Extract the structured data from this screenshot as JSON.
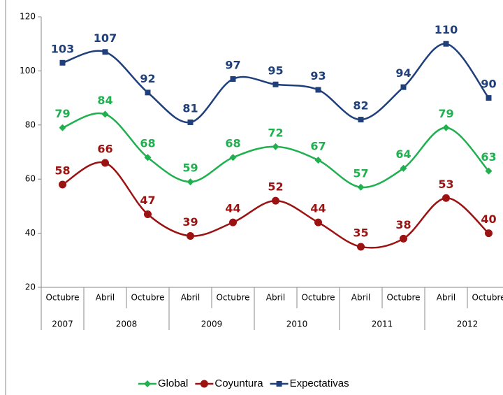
{
  "chart_data": {
    "type": "line",
    "categories": [
      "Octubre",
      "Abril",
      "Octubre",
      "Abril",
      "Octubre",
      "Abril",
      "Octubre",
      "Abril",
      "Octubre",
      "Abril",
      "Octubre"
    ],
    "year_labels": [
      "2007",
      "2008",
      null,
      "2009",
      null,
      "2010",
      null,
      "2011",
      null,
      "2012",
      null
    ],
    "series": [
      {
        "name": "Global",
        "color": "#1fb04f",
        "marker": "diamond",
        "values": [
          79,
          84,
          68,
          59,
          68,
          72,
          67,
          57,
          64,
          79,
          63
        ]
      },
      {
        "name": "Coyuntura",
        "color": "#9b1212",
        "marker": "circle",
        "values": [
          58,
          66,
          47,
          39,
          44,
          52,
          44,
          35,
          38,
          53,
          40
        ]
      },
      {
        "name": "Expectativas",
        "color": "#1f3f7a",
        "marker": "square",
        "values": [
          103,
          107,
          92,
          81,
          97,
          95,
          93,
          82,
          94,
          110,
          90
        ]
      }
    ],
    "ylim": [
      20,
      120
    ],
    "yticks": [
      20,
      40,
      60,
      80,
      100,
      120
    ],
    "grid": false,
    "smooth": true,
    "legend": "bottom"
  }
}
